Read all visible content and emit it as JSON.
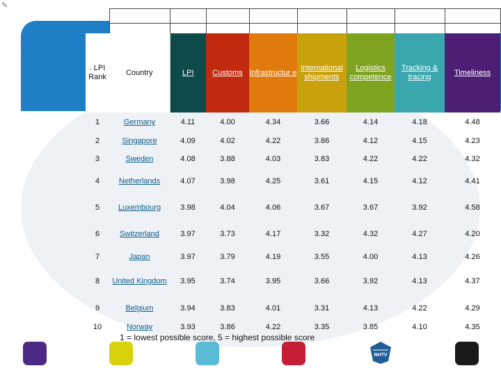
{
  "table": {
    "headers": {
      "rank": ". LPI Rank",
      "country": "Country",
      "lpi": "LPI",
      "customs": "Customs",
      "infrastructure": "Infrastructur e",
      "international_shipments": "International shipments",
      "logistics_competence": "Logistics competence",
      "tracking_tracing": "Tracking & tracing",
      "timeliness": "Timeliness"
    },
    "header_colors": {
      "lpi": "#0f4a4a",
      "customs": "#c12a0e",
      "infrastructure": "#e17a0c",
      "international_shipments": "#c9a10c",
      "logistics_competence": "#7ea320",
      "tracking_tracing": "#3aa6ad",
      "timeliness": "#4d1f74"
    },
    "rows": [
      {
        "rank": "1",
        "country": "Germany",
        "lpi": "4.11",
        "customs": "4.00",
        "infrastructure": "4.34",
        "international_shipments": "3.66",
        "logistics_competence": "4.14",
        "tracking_tracing": "4.18",
        "timeliness": "4.48"
      },
      {
        "rank": "2",
        "country": "Singapore",
        "lpi": "4.09",
        "customs": "4.02",
        "infrastructure": "4.22",
        "international_shipments": "3.86",
        "logistics_competence": "4.12",
        "tracking_tracing": "4.15",
        "timeliness": "4.23"
      },
      {
        "rank": "3",
        "country": "Sweden",
        "lpi": "4.08",
        "customs": "3.88",
        "infrastructure": "4.03",
        "international_shipments": "3.83",
        "logistics_competence": "4.22",
        "tracking_tracing": "4.22",
        "timeliness": "4.32"
      },
      {
        "rank": "4",
        "country": "Netherlands",
        "lpi": "4.07",
        "customs": "3.98",
        "infrastructure": "4.25",
        "international_shipments": "3.61",
        "logistics_competence": "4.15",
        "tracking_tracing": "4.12",
        "timeliness": "4.41"
      },
      {
        "rank": "5",
        "country": "Luxembourg",
        "lpi": "3.98",
        "customs": "4.04",
        "infrastructure": "4.06",
        "international_shipments": "3.67",
        "logistics_competence": "3.67",
        "tracking_tracing": "3.92",
        "timeliness": "4.58"
      },
      {
        "rank": "6",
        "country": "Switzerland",
        "lpi": "3.97",
        "customs": "3.73",
        "infrastructure": "4.17",
        "international_shipments": "3.32",
        "logistics_competence": "4.32",
        "tracking_tracing": "4.27",
        "timeliness": "4.20"
      },
      {
        "rank": "7",
        "country": "Japan",
        "lpi": "3.97",
        "customs": "3.79",
        "infrastructure": "4.19",
        "international_shipments": "3.55",
        "logistics_competence": "4.00",
        "tracking_tracing": "4.13",
        "timeliness": "4.26"
      },
      {
        "rank": "8",
        "country": "United Kingdom",
        "lpi": "3.95",
        "customs": "3.74",
        "infrastructure": "3.95",
        "international_shipments": "3.66",
        "logistics_competence": "3.92",
        "tracking_tracing": "4.13",
        "timeliness": "4.37"
      },
      {
        "rank": "9",
        "country": "Belgium",
        "lpi": "3.94",
        "customs": "3.83",
        "infrastructure": "4.01",
        "international_shipments": "3.31",
        "logistics_competence": "4.13",
        "tracking_tracing": "4.22",
        "timeliness": "4.29"
      },
      {
        "rank": "10",
        "country": "Norway",
        "lpi": "3.93",
        "customs": "3.86",
        "infrastructure": "4.22",
        "international_shipments": "3.35",
        "logistics_competence": "3.85",
        "tracking_tracing": "4.10",
        "timeliness": "4.35"
      }
    ]
  },
  "footnote": "1 = lowest possible score, 5 = highest possible score",
  "decor": {
    "band_color": "#1f7fc6",
    "squares": [
      "#4b2a86",
      "#d8d20d",
      "#5bbad6",
      "#c61f35",
      "#1a1a1a"
    ],
    "logo_label": "NHTV"
  }
}
